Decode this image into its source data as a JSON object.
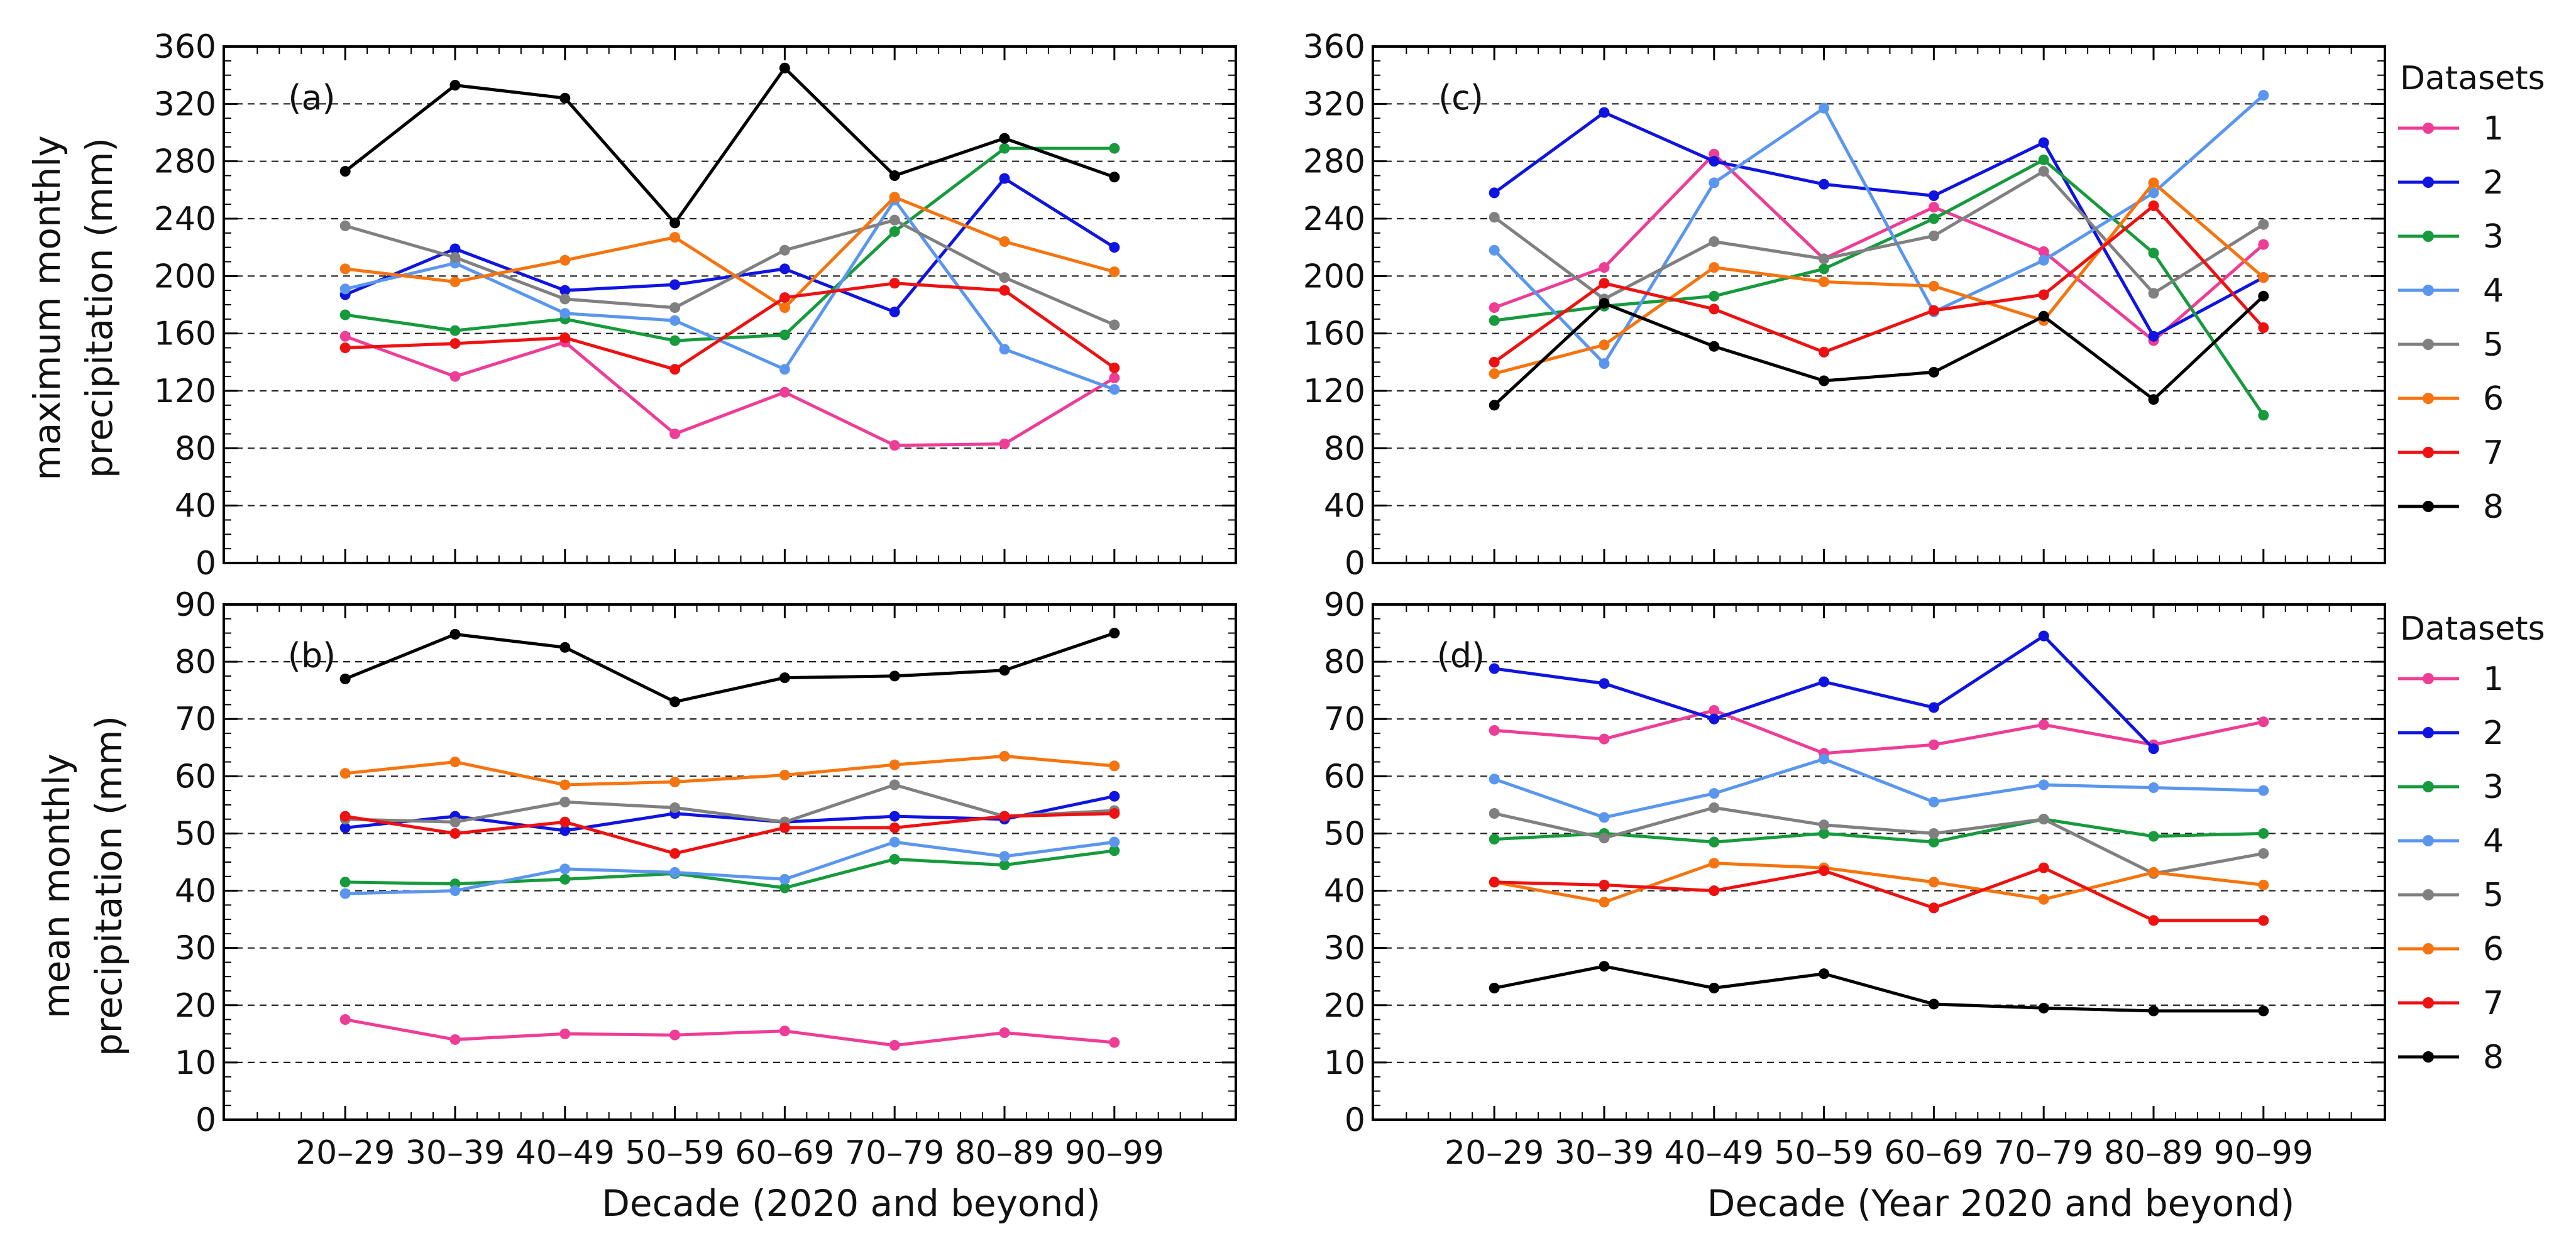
{
  "figure": {
    "legend_title": "Datasets",
    "ylabel_top": [
      "maximum monthly",
      "precipitation (mm)"
    ],
    "ylabel_bottom": [
      "mean monthly",
      "precipitation (mm)"
    ],
    "xlabel_left": "Decade (2020 and beyond)",
    "xlabel_right": "Decade (Year 2020 and beyond)"
  },
  "colors": {
    "1": "#ee3d96",
    "2": "#0f14e0",
    "3": "#169a3c",
    "4": "#5a96ee",
    "5": "#808080",
    "6": "#f6740f",
    "7": "#ee1111",
    "8": "#000000"
  },
  "chart_data": [
    {
      "id": "a",
      "type": "line",
      "panel_label": "(a)",
      "categories": [
        "20–29",
        "30–39",
        "40–49",
        "50–59",
        "60–69",
        "70–79",
        "80–89",
        "90–99"
      ],
      "ylim": [
        0,
        360
      ],
      "yticks": [
        0,
        40,
        80,
        120,
        160,
        200,
        240,
        280,
        320,
        360
      ],
      "grid": true,
      "series": [
        {
          "name": "1",
          "values": [
            158,
            130,
            154,
            90,
            119,
            82,
            83,
            129
          ]
        },
        {
          "name": "2",
          "values": [
            187,
            219,
            190,
            194,
            205,
            175,
            268,
            220
          ]
        },
        {
          "name": "3",
          "values": [
            173,
            162,
            170,
            155,
            159,
            231,
            289,
            289
          ]
        },
        {
          "name": "4",
          "values": [
            191,
            209,
            174,
            169,
            135,
            253,
            149,
            121
          ]
        },
        {
          "name": "5",
          "values": [
            235,
            213,
            184,
            178,
            218,
            239,
            199,
            166
          ]
        },
        {
          "name": "6",
          "values": [
            205,
            196,
            211,
            227,
            178,
            255,
            224,
            203
          ]
        },
        {
          "name": "7",
          "values": [
            150,
            153,
            157,
            135,
            185,
            195,
            190,
            136
          ]
        },
        {
          "name": "8",
          "values": [
            273,
            333,
            324,
            237,
            345,
            270,
            296,
            269
          ]
        }
      ]
    },
    {
      "id": "c",
      "type": "line",
      "panel_label": "(c)",
      "categories": [
        "20–29",
        "30–39",
        "40–49",
        "50–59",
        "60–69",
        "70–79",
        "80–89",
        "90–99"
      ],
      "ylim": [
        0,
        360
      ],
      "yticks": [
        0,
        40,
        80,
        120,
        160,
        200,
        240,
        280,
        320,
        360
      ],
      "grid": true,
      "series": [
        {
          "name": "1",
          "values": [
            178,
            206,
            285,
            212,
            248,
            217,
            155,
            222
          ]
        },
        {
          "name": "2",
          "values": [
            258,
            314,
            280,
            264,
            256,
            293,
            158,
            199
          ]
        },
        {
          "name": "3",
          "values": [
            169,
            179,
            186,
            205,
            240,
            281,
            216,
            103
          ]
        },
        {
          "name": "4",
          "values": [
            218,
            139,
            265,
            317,
            175,
            211,
            258,
            326
          ]
        },
        {
          "name": "5",
          "values": [
            241,
            184,
            224,
            212,
            228,
            273,
            188,
            236
          ]
        },
        {
          "name": "6",
          "values": [
            132,
            152,
            206,
            196,
            193,
            169,
            265,
            199
          ]
        },
        {
          "name": "7",
          "values": [
            140,
            195,
            177,
            147,
            176,
            187,
            249,
            164
          ]
        },
        {
          "name": "8",
          "values": [
            110,
            181,
            151,
            127,
            133,
            172,
            114,
            186
          ]
        }
      ]
    },
    {
      "id": "b",
      "type": "line",
      "panel_label": "(b)",
      "categories": [
        "20–29",
        "30–39",
        "40–49",
        "50–59",
        "60–69",
        "70–79",
        "80–89",
        "90–99"
      ],
      "ylim": [
        0,
        90
      ],
      "yticks": [
        0,
        10,
        20,
        30,
        40,
        50,
        60,
        70,
        80,
        90
      ],
      "grid": true,
      "series": [
        {
          "name": "1",
          "values": [
            17.5,
            14,
            15,
            14.8,
            15.5,
            13,
            15.2,
            13.5
          ]
        },
        {
          "name": "2",
          "values": [
            51,
            53,
            50.5,
            53.5,
            52,
            53,
            52.5,
            56.5
          ]
        },
        {
          "name": "3",
          "values": [
            41.5,
            41.2,
            42,
            43,
            40.5,
            45.5,
            44.5,
            47
          ]
        },
        {
          "name": "4",
          "values": [
            39.5,
            40,
            43.8,
            43.2,
            42,
            48.5,
            46,
            48.5
          ]
        },
        {
          "name": "5",
          "values": [
            52.5,
            52,
            55.5,
            54.5,
            52,
            58.5,
            53,
            54
          ]
        },
        {
          "name": "6",
          "values": [
            60.5,
            62.5,
            58.5,
            59,
            60.2,
            62,
            63.5,
            61.8
          ]
        },
        {
          "name": "7",
          "values": [
            53,
            50,
            52,
            46.5,
            51,
            51,
            53,
            53.5
          ]
        },
        {
          "name": "8",
          "values": [
            77,
            84.8,
            82.5,
            73,
            77.2,
            77.5,
            78.5,
            85
          ]
        }
      ]
    },
    {
      "id": "d",
      "type": "line",
      "panel_label": "(d)",
      "categories": [
        "20–29",
        "30–39",
        "40–49",
        "50–59",
        "60–69",
        "70–79",
        "80–89",
        "90–99"
      ],
      "ylim": [
        0,
        90
      ],
      "yticks": [
        0,
        10,
        20,
        30,
        40,
        50,
        60,
        70,
        80,
        90
      ],
      "grid": true,
      "series": [
        {
          "name": "1",
          "values": [
            68,
            66.5,
            71.5,
            64,
            65.5,
            69,
            65.5,
            69.5
          ]
        },
        {
          "name": "2",
          "values": [
            78.8,
            76.2,
            70,
            76.5,
            72,
            84.5,
            64.8,
            null
          ]
        },
        {
          "name": "3",
          "values": [
            49,
            50,
            48.5,
            50,
            48.5,
            52.5,
            49.5,
            50
          ]
        },
        {
          "name": "4",
          "values": [
            59.5,
            52.8,
            57,
            63,
            55.5,
            58.5,
            58,
            57.5
          ]
        },
        {
          "name": "5",
          "values": [
            53.5,
            49.2,
            54.5,
            51.5,
            50,
            52.5,
            43,
            46.5
          ]
        },
        {
          "name": "6",
          "values": [
            41.5,
            38,
            44.8,
            44,
            41.5,
            38.5,
            43.2,
            41
          ]
        },
        {
          "name": "7",
          "values": [
            41.5,
            41,
            40,
            43.5,
            37,
            44,
            34.8,
            34.8
          ]
        },
        {
          "name": "8",
          "values": [
            23,
            26.8,
            23,
            25.5,
            20.2,
            19.5,
            19,
            19
          ]
        }
      ]
    }
  ]
}
